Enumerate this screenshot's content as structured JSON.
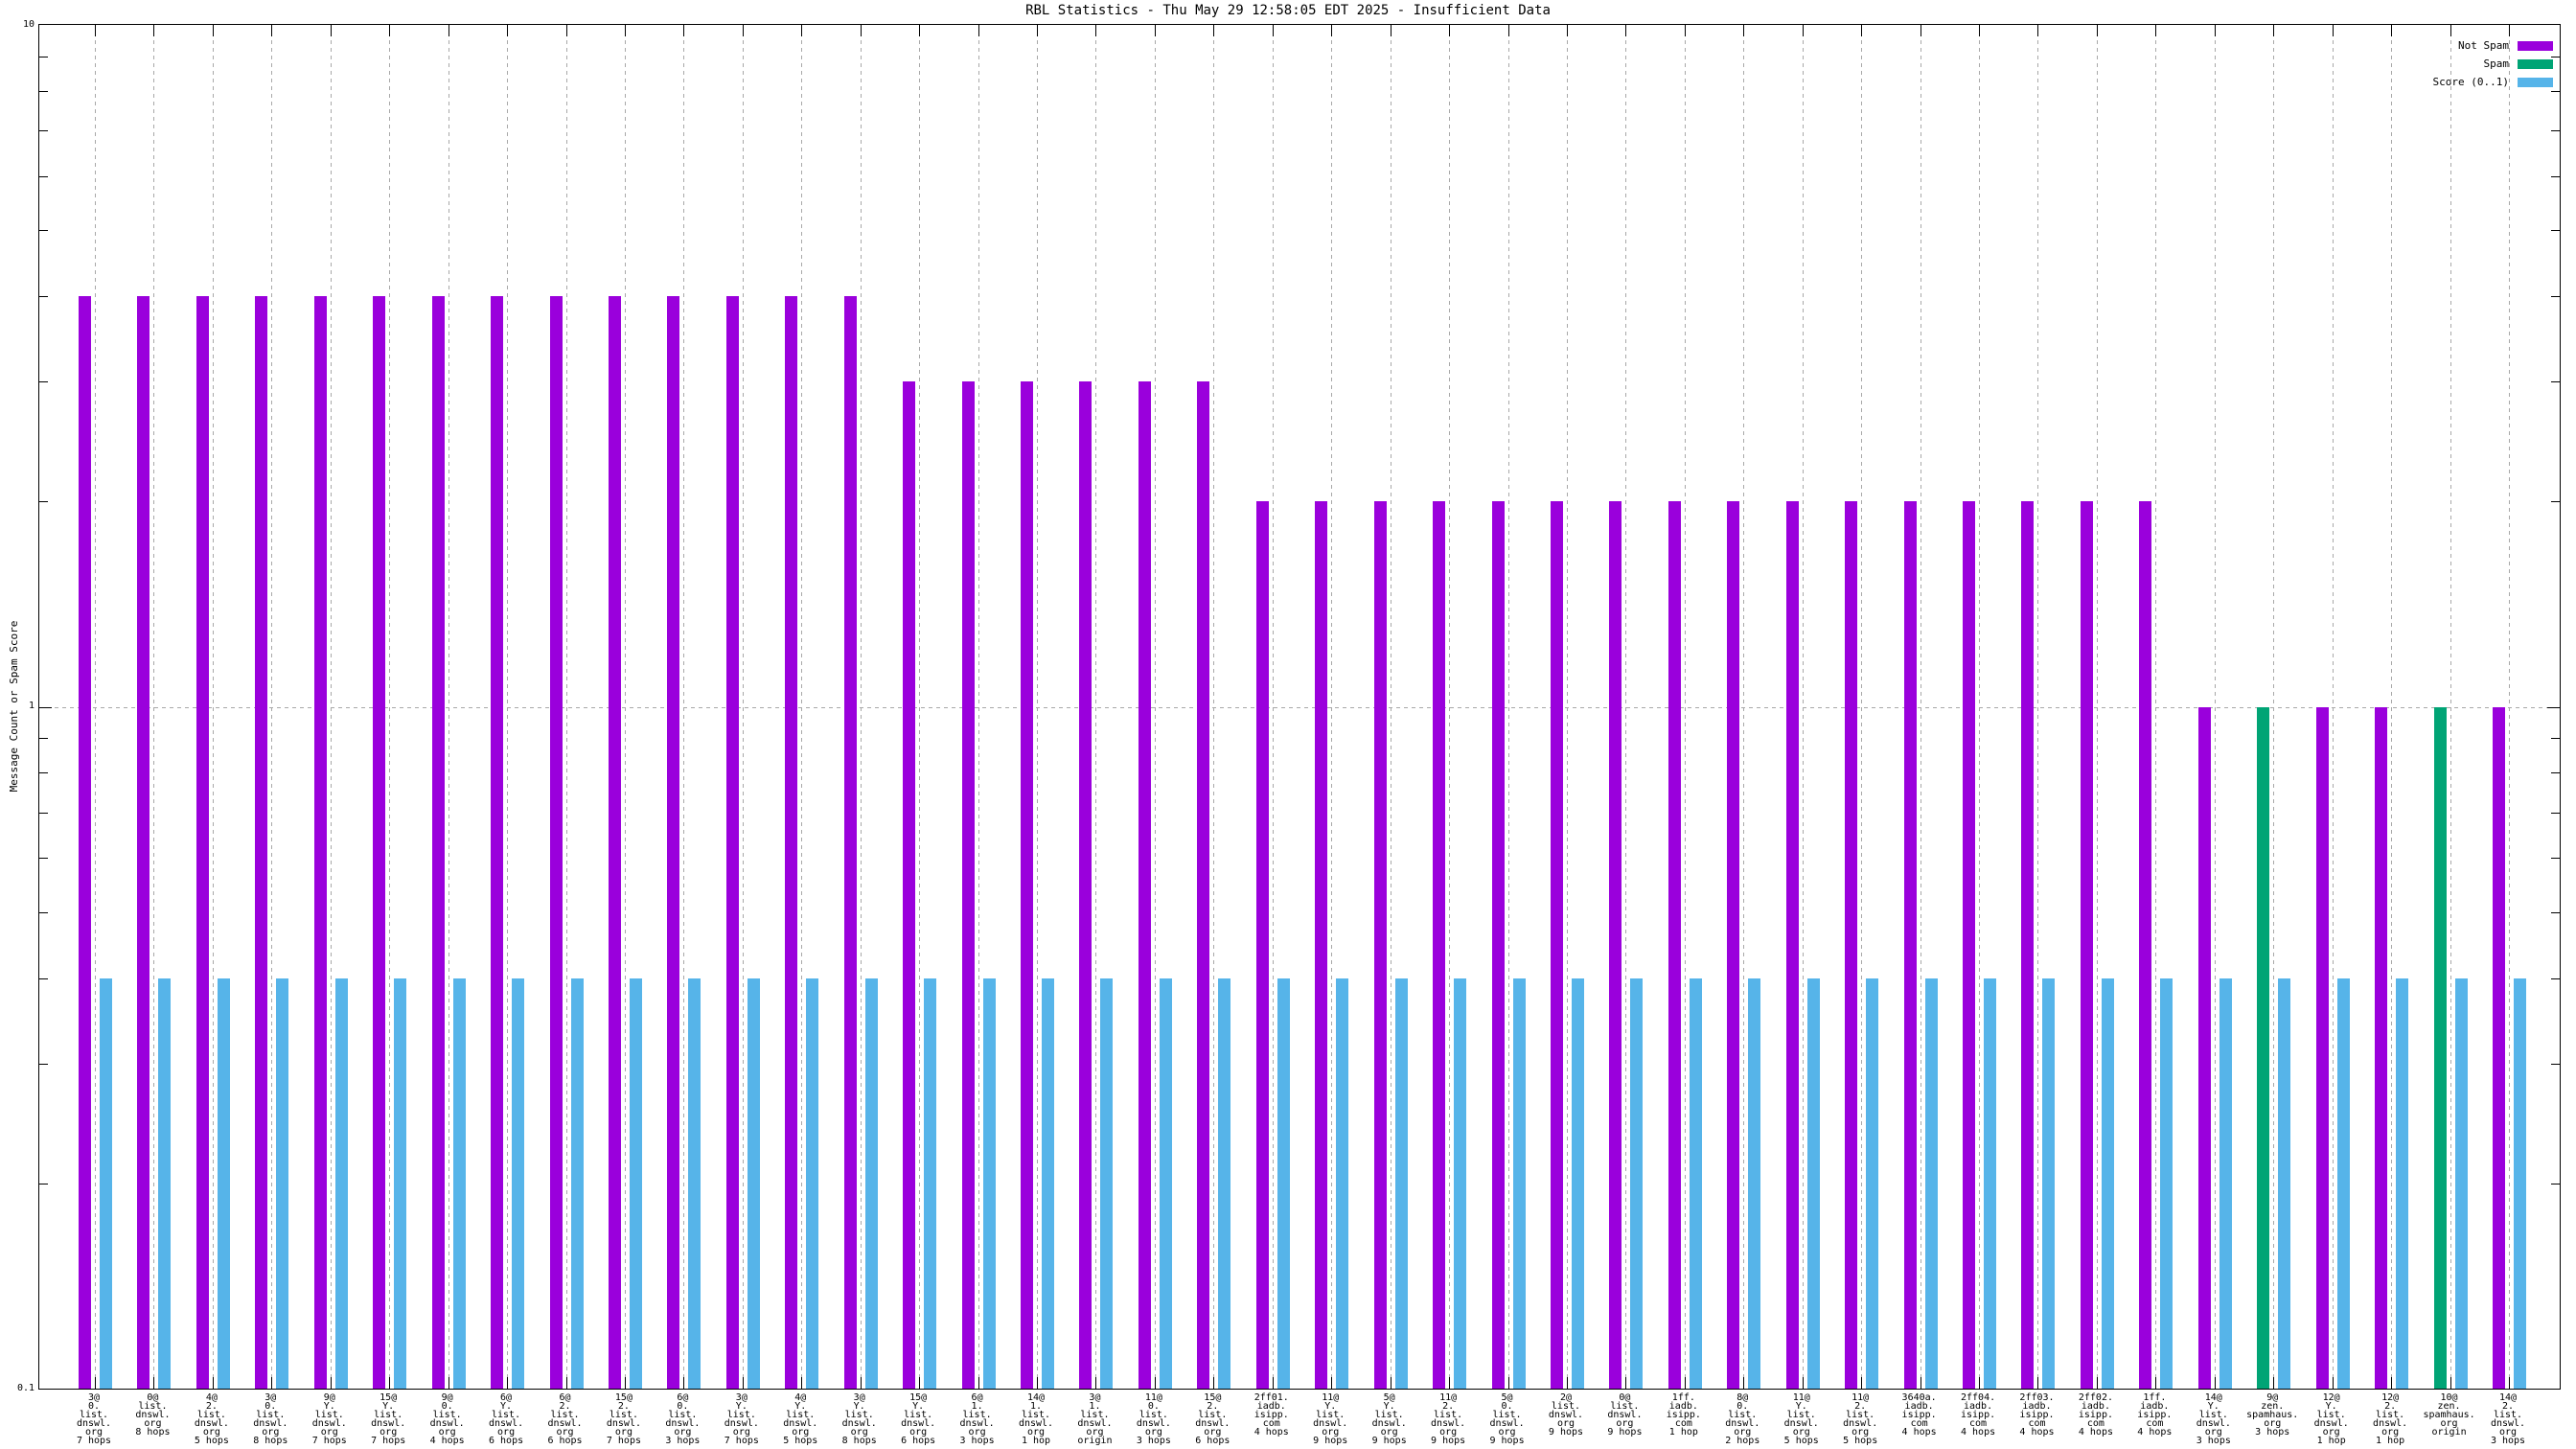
{
  "title": "RBL Statistics - Thu May 29 12:58:05 EDT 2025 - Insufficient Data",
  "ylabel": "Message Count or Spam Score",
  "y_axis": {
    "tick_labels": [
      "10",
      "1",
      "0.1"
    ]
  },
  "colors": {
    "not_spam": "#9A00DC",
    "spam": "#00A475",
    "score": "#56B4E9",
    "grid": "#a8a8a8"
  },
  "legend": {
    "items": [
      {
        "id": "not_spam",
        "label": "Not Spam"
      },
      {
        "id": "spam",
        "label": "Spam"
      },
      {
        "id": "score",
        "label": "Score (0..1)"
      }
    ]
  },
  "chart_data": {
    "type": "bar",
    "title": "RBL Statistics - Thu May 29 12:58:05 EDT 2025 - Insufficient Data",
    "xlabel": "",
    "ylabel": "Message Count or Spam Score",
    "yscale": "log",
    "ylim": [
      0.1,
      10
    ],
    "ytick_labels": [
      "10",
      "1",
      "0.1"
    ],
    "grid": "dashed vertical line per category, dashed horizontal line at y=1",
    "legend_position": "top-right-inside",
    "series_names": [
      "Not Spam",
      "Spam",
      "Score (0..1)"
    ],
    "categories": [
      {
        "lines": [
          "3@",
          "0.",
          "list.",
          "dnswl.",
          "org",
          "7 hops"
        ],
        "series": "not_spam",
        "count": 4,
        "score": 0.4
      },
      {
        "lines": [
          "0@",
          "list.",
          "dnswl.",
          "org",
          "8 hops"
        ],
        "series": "not_spam",
        "count": 4,
        "score": 0.4
      },
      {
        "lines": [
          "4@",
          "2.",
          "list.",
          "dnswl.",
          "org",
          "5 hops"
        ],
        "series": "not_spam",
        "count": 4,
        "score": 0.4
      },
      {
        "lines": [
          "3@",
          "0.",
          "list.",
          "dnswl.",
          "org",
          "8 hops"
        ],
        "series": "not_spam",
        "count": 4,
        "score": 0.4
      },
      {
        "lines": [
          "9@",
          "Y.",
          "list.",
          "dnswl.",
          "org",
          "7 hops"
        ],
        "series": "not_spam",
        "count": 4,
        "score": 0.4
      },
      {
        "lines": [
          "15@",
          "Y.",
          "list.",
          "dnswl.",
          "org",
          "7 hops"
        ],
        "series": "not_spam",
        "count": 4,
        "score": 0.4
      },
      {
        "lines": [
          "9@",
          "0.",
          "list.",
          "dnswl.",
          "org",
          "4 hops"
        ],
        "series": "not_spam",
        "count": 4,
        "score": 0.4
      },
      {
        "lines": [
          "6@",
          "Y.",
          "list.",
          "dnswl.",
          "org",
          "6 hops"
        ],
        "series": "not_spam",
        "count": 4,
        "score": 0.4
      },
      {
        "lines": [
          "6@",
          "2.",
          "list.",
          "dnswl.",
          "org",
          "6 hops"
        ],
        "series": "not_spam",
        "count": 4,
        "score": 0.4
      },
      {
        "lines": [
          "15@",
          "2.",
          "list.",
          "dnswl.",
          "org",
          "7 hops"
        ],
        "series": "not_spam",
        "count": 4,
        "score": 0.4
      },
      {
        "lines": [
          "6@",
          "0.",
          "list.",
          "dnswl.",
          "org",
          "3 hops"
        ],
        "series": "not_spam",
        "count": 4,
        "score": 0.4
      },
      {
        "lines": [
          "3@",
          "Y.",
          "list.",
          "dnswl.",
          "org",
          "7 hops"
        ],
        "series": "not_spam",
        "count": 4,
        "score": 0.4
      },
      {
        "lines": [
          "4@",
          "Y.",
          "list.",
          "dnswl.",
          "org",
          "5 hops"
        ],
        "series": "not_spam",
        "count": 4,
        "score": 0.4
      },
      {
        "lines": [
          "3@",
          "Y.",
          "list.",
          "dnswl.",
          "org",
          "8 hops"
        ],
        "series": "not_spam",
        "count": 4,
        "score": 0.4
      },
      {
        "lines": [
          "15@",
          "Y.",
          "list.",
          "dnswl.",
          "org",
          "6 hops"
        ],
        "series": "not_spam",
        "count": 3,
        "score": 0.4
      },
      {
        "lines": [
          "6@",
          "1.",
          "list.",
          "dnswl.",
          "org",
          "3 hops"
        ],
        "series": "not_spam",
        "count": 3,
        "score": 0.4
      },
      {
        "lines": [
          "14@",
          "1.",
          "list.",
          "dnswl.",
          "org",
          "1 hop"
        ],
        "series": "not_spam",
        "count": 3,
        "score": 0.4
      },
      {
        "lines": [
          "3@",
          "1.",
          "list.",
          "dnswl.",
          "org",
          "origin"
        ],
        "series": "not_spam",
        "count": 3,
        "score": 0.4
      },
      {
        "lines": [
          "11@",
          "0.",
          "list.",
          "dnswl.",
          "org",
          "3 hops"
        ],
        "series": "not_spam",
        "count": 3,
        "score": 0.4
      },
      {
        "lines": [
          "15@",
          "2.",
          "list.",
          "dnswl.",
          "org",
          "6 hops"
        ],
        "series": "not_spam",
        "count": 3,
        "score": 0.4
      },
      {
        "lines": [
          "2ff01.",
          "iadb.",
          "isipp.",
          "com",
          "4 hops"
        ],
        "series": "not_spam",
        "count": 2,
        "score": 0.4
      },
      {
        "lines": [
          "11@",
          "Y.",
          "list.",
          "dnswl.",
          "org",
          "9 hops"
        ],
        "series": "not_spam",
        "count": 2,
        "score": 0.4
      },
      {
        "lines": [
          "5@",
          "Y.",
          "list.",
          "dnswl.",
          "org",
          "9 hops"
        ],
        "series": "not_spam",
        "count": 2,
        "score": 0.4
      },
      {
        "lines": [
          "11@",
          "2.",
          "list.",
          "dnswl.",
          "org",
          "9 hops"
        ],
        "series": "not_spam",
        "count": 2,
        "score": 0.4
      },
      {
        "lines": [
          "5@",
          "0.",
          "list.",
          "dnswl.",
          "org",
          "9 hops"
        ],
        "series": "not_spam",
        "count": 2,
        "score": 0.4
      },
      {
        "lines": [
          "2@",
          "list.",
          "dnswl.",
          "org",
          "9 hops"
        ],
        "series": "not_spam",
        "count": 2,
        "score": 0.4
      },
      {
        "lines": [
          "0@",
          "list.",
          "dnswl.",
          "org",
          "9 hops"
        ],
        "series": "not_spam",
        "count": 2,
        "score": 0.4
      },
      {
        "lines": [
          "1ff.",
          "iadb.",
          "isipp.",
          "com",
          "1 hop"
        ],
        "series": "not_spam",
        "count": 2,
        "score": 0.4
      },
      {
        "lines": [
          "8@",
          "0.",
          "list.",
          "dnswl.",
          "org",
          "2 hops"
        ],
        "series": "not_spam",
        "count": 2,
        "score": 0.4
      },
      {
        "lines": [
          "11@",
          "Y.",
          "list.",
          "dnswl.",
          "org",
          "5 hops"
        ],
        "series": "not_spam",
        "count": 2,
        "score": 0.4
      },
      {
        "lines": [
          "11@",
          "2.",
          "list.",
          "dnswl.",
          "org",
          "5 hops"
        ],
        "series": "not_spam",
        "count": 2,
        "score": 0.4
      },
      {
        "lines": [
          "3640a.",
          "iadb.",
          "isipp.",
          "com",
          "4 hops"
        ],
        "series": "not_spam",
        "count": 2,
        "score": 0.4
      },
      {
        "lines": [
          "2ff04.",
          "iadb.",
          "isipp.",
          "com",
          "4 hops"
        ],
        "series": "not_spam",
        "count": 2,
        "score": 0.4
      },
      {
        "lines": [
          "2ff03.",
          "iadb.",
          "isipp.",
          "com",
          "4 hops"
        ],
        "series": "not_spam",
        "count": 2,
        "score": 0.4
      },
      {
        "lines": [
          "2ff02.",
          "iadb.",
          "isipp.",
          "com",
          "4 hops"
        ],
        "series": "not_spam",
        "count": 2,
        "score": 0.4
      },
      {
        "lines": [
          "1ff.",
          "iadb.",
          "isipp.",
          "com",
          "4 hops"
        ],
        "series": "not_spam",
        "count": 2,
        "score": 0.4
      },
      {
        "lines": [
          "14@",
          "Y.",
          "list.",
          "dnswl.",
          "org",
          "3 hops"
        ],
        "series": "not_spam",
        "count": 1,
        "score": 0.4
      },
      {
        "lines": [
          "9@",
          "zen.",
          "spamhaus.",
          "org",
          "3 hops"
        ],
        "series": "spam",
        "count": 1,
        "score": 0.4
      },
      {
        "lines": [
          "12@",
          "Y.",
          "list.",
          "dnswl.",
          "org",
          "1 hop"
        ],
        "series": "not_spam",
        "count": 1,
        "score": 0.4
      },
      {
        "lines": [
          "12@",
          "2.",
          "list.",
          "dnswl.",
          "org",
          "1 hop"
        ],
        "series": "not_spam",
        "count": 1,
        "score": 0.4
      },
      {
        "lines": [
          "10@",
          "zen.",
          "spamhaus.",
          "org",
          "origin"
        ],
        "series": "spam",
        "count": 1,
        "score": 0.4
      },
      {
        "lines": [
          "14@",
          "2.",
          "list.",
          "dnswl.",
          "org",
          "3 hops"
        ],
        "series": "not_spam",
        "count": 1,
        "score": 0.4
      }
    ]
  }
}
